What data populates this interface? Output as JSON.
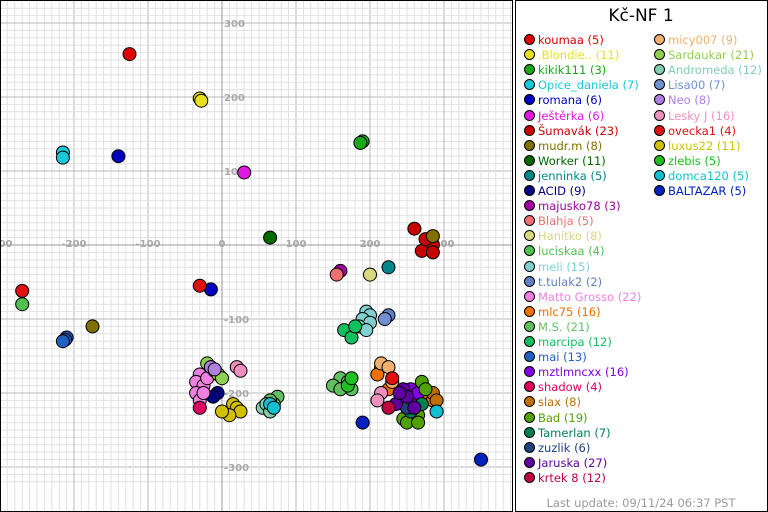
{
  "chart_data": {
    "type": "scatter",
    "title": "Kč-NF 1",
    "xlim": [
      -300,
      300
    ],
    "ylim": [
      -350,
      400
    ],
    "x_ticks": [
      -300,
      -200,
      -100,
      0,
      100,
      200,
      300
    ],
    "y_ticks": [
      -300,
      -200,
      -100,
      100,
      200,
      300
    ],
    "grid": true,
    "legend_placement": "right",
    "footer": "Last update: 09/11/24 06:37 PST",
    "series": [
      {
        "name": "koumaa (5)",
        "color": "#e00000",
        "points": [
          [
            -125,
            258
          ]
        ]
      },
      {
        "name": ".Blondie.. (11)",
        "color": "#e8e020",
        "points": [
          [
            -30,
            198
          ],
          [
            -28,
            195
          ]
        ]
      },
      {
        "name": "kikik111 (3)",
        "color": "#18a818",
        "points": [
          [
            190,
            140
          ],
          [
            187,
            138
          ]
        ]
      },
      {
        "name": "Opice_daniela (7)",
        "color": "#18c8d8",
        "points": [
          [
            -215,
            125
          ],
          [
            -215,
            118
          ]
        ]
      },
      {
        "name": "romana (6)",
        "color": "#0000c0",
        "points": [
          [
            -140,
            120
          ],
          [
            -15,
            -60
          ]
        ]
      },
      {
        "name": "Ještěrka (6)",
        "color": "#e018e0",
        "points": [
          [
            30,
            98
          ]
        ]
      },
      {
        "name": "Šumavák (23)",
        "color": "#c80000",
        "points": [
          [
            260,
            22
          ],
          [
            280,
            5
          ],
          [
            285,
            0
          ],
          [
            270,
            -8
          ],
          [
            285,
            -10
          ],
          [
            275,
            8
          ]
        ]
      },
      {
        "name": "mudr.m (8)",
        "color": "#807000",
        "points": [
          [
            -175,
            -110
          ],
          [
            285,
            12
          ]
        ]
      },
      {
        "name": "Worker (11)",
        "color": "#006800",
        "points": [
          [
            65,
            10
          ]
        ]
      },
      {
        "name": "jenninka (5)",
        "color": "#008888",
        "points": [
          [
            225,
            -30
          ]
        ]
      },
      {
        "name": "ACID (9)",
        "color": "#000080",
        "points": [
          [
            -6,
            -200
          ],
          [
            -12,
            -205
          ]
        ]
      },
      {
        "name": "majusko78 (3)",
        "color": "#a000a0",
        "points": [
          [
            160,
            -35
          ]
        ]
      },
      {
        "name": "Blahja (5)",
        "color": "#f07070",
        "points": [
          [
            155,
            -40
          ]
        ]
      },
      {
        "name": "Hanitko (8)",
        "color": "#d8d880",
        "points": [
          [
            200,
            -40
          ]
        ]
      },
      {
        "name": "luciskaa (4)",
        "color": "#50c050",
        "points": [
          [
            -270,
            -80
          ]
        ]
      },
      {
        "name": "meli (15)",
        "color": "#80d0d0",
        "points": [
          [
            195,
            -90
          ],
          [
            200,
            -95
          ],
          [
            190,
            -100
          ],
          [
            200,
            -105
          ],
          [
            185,
            -110
          ],
          [
            195,
            -115
          ]
        ]
      },
      {
        "name": "t.tulak2 (2)",
        "color": "#6080c0",
        "points": [
          [
            225,
            -95
          ]
        ]
      },
      {
        "name": "Matto Grosso (22)",
        "color": "#f080e0",
        "points": [
          [
            -30,
            -175
          ],
          [
            -35,
            -185
          ],
          [
            -25,
            -190
          ],
          [
            -35,
            -200
          ],
          [
            -30,
            -210
          ],
          [
            -20,
            -180
          ],
          [
            -25,
            -200
          ]
        ]
      },
      {
        "name": "mlc75 (16)",
        "color": "#f07000",
        "points": [
          [
            215,
            -165
          ],
          [
            210,
            -175
          ],
          [
            225,
            -195
          ],
          [
            270,
            -200
          ],
          [
            275,
            -205
          ],
          [
            260,
            -210
          ],
          [
            285,
            -210
          ]
        ]
      },
      {
        "name": "M.S. (21)",
        "color": "#60c060",
        "points": [
          [
            160,
            -180
          ],
          [
            170,
            -185
          ],
          [
            150,
            -190
          ],
          [
            175,
            -195
          ],
          [
            160,
            -195
          ],
          [
            75,
            -205
          ],
          [
            70,
            -215
          ],
          [
            65,
            -210
          ]
        ]
      },
      {
        "name": "marcipa (12)",
        "color": "#10c060",
        "points": [
          [
            165,
            -115
          ],
          [
            175,
            -125
          ],
          [
            180,
            -110
          ]
        ]
      },
      {
        "name": "mai (13)",
        "color": "#2060c0",
        "points": [
          [
            -210,
            -125
          ],
          [
            -212,
            -128
          ],
          [
            -215,
            -130
          ]
        ]
      },
      {
        "name": "mztlmncxx (16)",
        "color": "#8000e0",
        "points": [
          [
            255,
            -195
          ],
          [
            260,
            -210
          ],
          [
            265,
            -200
          ]
        ]
      },
      {
        "name": "shadow (4)",
        "color": "#e00060",
        "points": [
          [
            -30,
            -220
          ]
        ]
      },
      {
        "name": "slax (8)",
        "color": "#c07000",
        "points": [
          [
            285,
            -200
          ],
          [
            290,
            -210
          ]
        ]
      },
      {
        "name": "Bad (19)",
        "color": "#50a000",
        "points": [
          [
            270,
            -185
          ],
          [
            275,
            -195
          ],
          [
            255,
            -225
          ],
          [
            265,
            -230
          ],
          [
            245,
            -235
          ],
          [
            250,
            -240
          ],
          [
            265,
            -240
          ]
        ]
      },
      {
        "name": "Tamerlan (7)",
        "color": "#008050",
        "points": [
          [
            270,
            -215
          ],
          [
            255,
            -225
          ]
        ]
      },
      {
        "name": "zuzlik (6)",
        "color": "#204080",
        "points": [
          [
            245,
            -215
          ],
          [
            250,
            -220
          ]
        ]
      },
      {
        "name": "Jaruska (27)",
        "color": "#6000a0",
        "points": [
          [
            245,
            -195
          ],
          [
            250,
            -205
          ],
          [
            235,
            -215
          ],
          [
            260,
            -220
          ],
          [
            240,
            -200
          ]
        ]
      },
      {
        "name": "krtek 8 (12)",
        "color": "#c00040",
        "points": [
          [
            225,
            -220
          ]
        ]
      },
      {
        "name": "micy007 (9)",
        "color": "#f0b070",
        "points": [
          [
            215,
            -160
          ],
          [
            225,
            -165
          ],
          [
            230,
            -185
          ]
        ]
      },
      {
        "name": "Sardaukar (21)",
        "color": "#90d050",
        "points": [
          [
            -20,
            -160
          ],
          [
            -15,
            -165
          ],
          [
            -10,
            -170
          ],
          [
            -5,
            -175
          ],
          [
            0,
            -180
          ]
        ]
      },
      {
        "name": "Andromeda (12)",
        "color": "#80d0b0",
        "points": [
          [
            55,
            -220
          ],
          [
            60,
            -215
          ],
          [
            65,
            -225
          ]
        ]
      },
      {
        "name": "Lisa00 (7)",
        "color": "#7090d0",
        "points": [
          [
            220,
            -100
          ]
        ]
      },
      {
        "name": "Neo (8)",
        "color": "#b080e0",
        "points": [
          [
            -15,
            -165
          ],
          [
            -10,
            -168
          ]
        ]
      },
      {
        "name": "Lesky J (16)",
        "color": "#f090c0",
        "points": [
          [
            20,
            -165
          ],
          [
            25,
            -170
          ],
          [
            215,
            -200
          ],
          [
            210,
            -210
          ]
        ]
      },
      {
        "name": "ovecka1 (4)",
        "color": "#e01010",
        "points": [
          [
            -270,
            -62
          ],
          [
            -30,
            -55
          ],
          [
            230,
            -180
          ]
        ]
      },
      {
        "name": "luxus22 (11)",
        "color": "#d0c000",
        "points": [
          [
            15,
            -215
          ],
          [
            20,
            -220
          ],
          [
            25,
            -225
          ],
          [
            10,
            -230
          ],
          [
            0,
            -225
          ]
        ]
      },
      {
        "name": "zlebis (5)",
        "color": "#20c020",
        "points": [
          [
            170,
            -190
          ],
          [
            175,
            -180
          ]
        ]
      },
      {
        "name": "domca120 (5)",
        "color": "#10c0d0",
        "points": [
          [
            65,
            -215
          ],
          [
            70,
            -220
          ],
          [
            290,
            -225
          ]
        ]
      },
      {
        "name": "BALTAZAR (5)",
        "color": "#0020c0",
        "points": [
          [
            190,
            -240
          ],
          [
            350,
            -290
          ]
        ]
      }
    ]
  }
}
